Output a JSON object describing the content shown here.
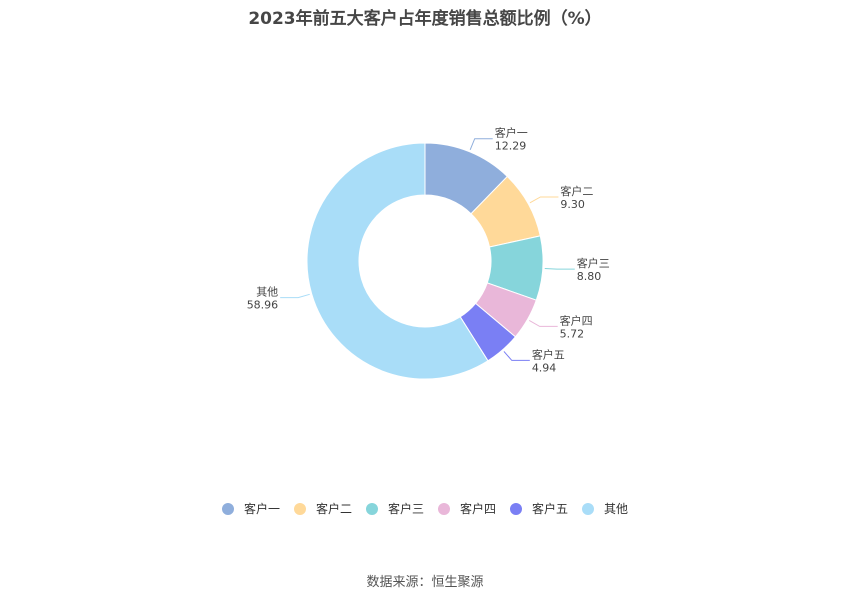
{
  "title": "2023年前五大客户占年度销售总额比例（%）",
  "source": {
    "label": "数据来源：",
    "value": "恒生聚源"
  },
  "chart_data": {
    "type": "pie",
    "title": "2023年前五大客户占年度销售总额比例（%）",
    "donut": true,
    "legend": "bottom",
    "categories": [
      "客户一",
      "客户二",
      "客户三",
      "客户四",
      "客户五",
      "其他"
    ],
    "values": [
      12.29,
      9.3,
      8.8,
      5.72,
      4.94,
      58.96
    ],
    "value_labels": [
      "12.29",
      "9.30",
      "8.80",
      "5.72",
      "4.94",
      "58.96"
    ],
    "colors": [
      "#8FAEDC",
      "#FFD999",
      "#86D5DB",
      "#E9B7D9",
      "#7A7FF4",
      "#A9DDF8"
    ]
  }
}
